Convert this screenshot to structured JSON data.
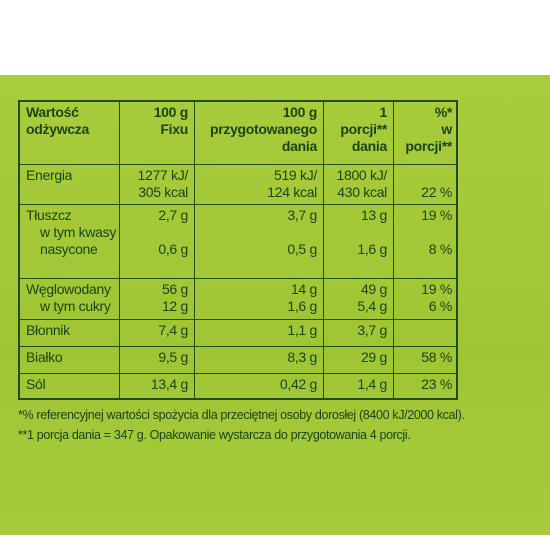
{
  "table": {
    "header": [
      [
        "Wartość",
        "odżywcza"
      ],
      [
        "100 g",
        "Fixu"
      ],
      [
        "100 g",
        "przygotowanego",
        "dania"
      ],
      [
        "1",
        "porcji**",
        "dania"
      ],
      [
        "%*",
        "w",
        "porcji**"
      ]
    ],
    "rows": [
      {
        "label": [
          "Energia"
        ],
        "values": [
          [
            "1277 kJ/",
            "305 kcal"
          ],
          [
            "519 kJ/",
            "124 kcal"
          ],
          [
            "1800 kJ/",
            "430 kcal"
          ],
          [
            null,
            "22 %"
          ]
        ]
      },
      {
        "label": [
          "Tłuszcz",
          "w tym kwasy",
          "nasycone"
        ],
        "values": [
          [
            "2,7 g",
            null,
            "0,6 g"
          ],
          [
            "3,7 g",
            null,
            "0,5 g"
          ],
          [
            "13 g",
            null,
            "1,6 g"
          ],
          [
            "19 %",
            null,
            "8 %"
          ]
        ]
      },
      {
        "label": [
          "Węglowodany",
          "w tym cukry"
        ],
        "values": [
          [
            "56 g",
            "12 g"
          ],
          [
            "14 g",
            "1,6 g"
          ],
          [
            "49 g",
            "5,4 g"
          ],
          [
            "19 %",
            "6 %"
          ]
        ]
      },
      {
        "label": [
          "Błonnik"
        ],
        "values": [
          [
            "7,4 g"
          ],
          [
            "1,1 g"
          ],
          [
            "3,7 g"
          ],
          [
            null
          ]
        ]
      },
      {
        "label": [
          "Białko"
        ],
        "values": [
          [
            "9,5 g"
          ],
          [
            "8,3 g"
          ],
          [
            "29 g"
          ],
          [
            "58 %"
          ]
        ]
      },
      {
        "label": [
          "Sól"
        ],
        "values": [
          [
            "13,4 g"
          ],
          [
            "0,42 g"
          ],
          [
            "1,4 g"
          ],
          [
            "23 %"
          ]
        ]
      }
    ]
  },
  "footnotes": [
    "*% referencyjnej wartości spożycia dla przeciętnej osoby dorosłej (8400 kJ/2000 kcal).",
    "**1 porcja dania = 347 g. Opakowanie wystarcza do przygotowania 4 porcji."
  ]
}
